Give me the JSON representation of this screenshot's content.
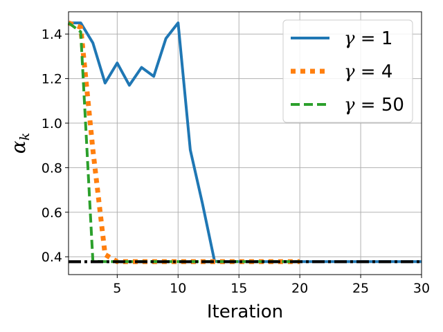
{
  "chart_data": {
    "type": "line",
    "title": "",
    "xlabel": "Iteration",
    "ylabel": "α",
    "ylabel_subscript": "k",
    "xlim": [
      1,
      30
    ],
    "ylim": [
      0.32,
      1.5
    ],
    "xticks": [
      5,
      10,
      15,
      20,
      25,
      30
    ],
    "yticks": [
      0.4,
      0.6,
      0.8,
      1.0,
      1.2,
      1.4
    ],
    "grid": true,
    "legend_position": "top-right",
    "series": [
      {
        "name": "γ = 1",
        "color": "#1f77b4",
        "style": "solid",
        "x": [
          1,
          2,
          3,
          4,
          5,
          6,
          7,
          8,
          9,
          10,
          11,
          12,
          13,
          14,
          15,
          16,
          17,
          18,
          19,
          20,
          21,
          22,
          23,
          24,
          25,
          26,
          27,
          28,
          29,
          30
        ],
        "y": [
          1.45,
          1.45,
          1.36,
          1.18,
          1.27,
          1.17,
          1.25,
          1.21,
          1.38,
          1.45,
          0.88,
          0.64,
          0.38,
          0.378,
          0.378,
          0.378,
          0.378,
          0.378,
          0.378,
          0.378,
          0.378,
          0.378,
          0.378,
          0.378,
          0.378,
          0.378,
          0.378,
          0.378,
          0.378,
          0.378
        ]
      },
      {
        "name": "γ = 4",
        "color": "#ff7f0e",
        "style": "dotted",
        "x": [
          1,
          2,
          3,
          4,
          5,
          6,
          7,
          8,
          9,
          10,
          11,
          12,
          13,
          14,
          15,
          16,
          17,
          18,
          19,
          20
        ],
        "y": [
          1.45,
          1.43,
          0.88,
          0.41,
          0.378,
          0.378,
          0.378,
          0.378,
          0.378,
          0.378,
          0.378,
          0.378,
          0.378,
          0.378,
          0.378,
          0.378,
          0.378,
          0.378,
          0.378,
          0.378
        ]
      },
      {
        "name": "γ = 50",
        "color": "#2ca02c",
        "style": "dashed",
        "x": [
          1,
          2,
          3,
          4,
          5,
          6,
          7,
          8,
          9,
          10,
          11,
          12,
          13,
          14,
          15,
          16,
          17,
          18,
          19,
          20
        ],
        "y": [
          1.45,
          1.41,
          0.38,
          0.378,
          0.378,
          0.378,
          0.378,
          0.378,
          0.378,
          0.378,
          0.378,
          0.378,
          0.378,
          0.378,
          0.378,
          0.378,
          0.378,
          0.378,
          0.378,
          0.378
        ]
      }
    ],
    "reference_line": {
      "y": 0.378,
      "color": "#000000",
      "style": "dashdot"
    },
    "legend": [
      {
        "label_prefix": "γ",
        "label_suffix": " = 1",
        "color": "#1f77b4",
        "style": "solid"
      },
      {
        "label_prefix": "γ",
        "label_suffix": " = 4",
        "color": "#ff7f0e",
        "style": "dotted"
      },
      {
        "label_prefix": "γ",
        "label_suffix": " = 50",
        "color": "#2ca02c",
        "style": "dashed"
      }
    ]
  }
}
